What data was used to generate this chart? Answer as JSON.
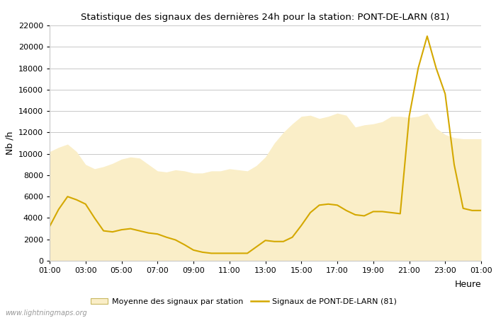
{
  "title": "Statistique des signaux des dernières 24h pour la station: PONT-DE-LARN (81)",
  "ylabel": "Nb /h",
  "watermark": "www.lightningmaps.org",
  "x_ticks": [
    "01:00",
    "03:00",
    "05:00",
    "07:00",
    "09:00",
    "11:00",
    "13:00",
    "15:00",
    "17:00",
    "19:00",
    "21:00",
    "23:00",
    "01:00"
  ],
  "ylim": [
    0,
    22000
  ],
  "yticks": [
    0,
    2000,
    4000,
    6000,
    8000,
    10000,
    12000,
    14000,
    16000,
    18000,
    20000,
    22000
  ],
  "bg_color": "#ffffff",
  "grid_color": "#c8c8c8",
  "fill_color": "#faeec8",
  "line_color": "#d4a800",
  "legend_fill_label": "Moyenne des signaux par station",
  "legend_line_label": "Signaux de PONT-DE-LARN (81)",
  "x_values": [
    0,
    0.5,
    1,
    1.5,
    2,
    2.5,
    3,
    3.5,
    4,
    4.5,
    5,
    5.5,
    6,
    6.5,
    7,
    7.5,
    8,
    8.5,
    9,
    9.5,
    10,
    10.5,
    11,
    11.5,
    12,
    12.5,
    13,
    13.5,
    14,
    14.5,
    15,
    15.5,
    16,
    16.5,
    17,
    17.5,
    18,
    18.5,
    19,
    19.5,
    20,
    20.5,
    21,
    21.5,
    22,
    22.5,
    23,
    23.5,
    24
  ],
  "moyenne_y": [
    10200,
    10600,
    10900,
    10200,
    9000,
    8600,
    8800,
    9100,
    9500,
    9700,
    9600,
    9000,
    8400,
    8300,
    8500,
    8400,
    8200,
    8200,
    8400,
    8400,
    8600,
    8500,
    8400,
    8900,
    9700,
    11000,
    12000,
    12800,
    13500,
    13600,
    13300,
    13500,
    13800,
    13600,
    12500,
    12700,
    12800,
    13000,
    13500,
    13500,
    13400,
    13500,
    13800,
    12400,
    11800,
    11500,
    11400,
    11400,
    11400
  ],
  "station_y": [
    3200,
    4800,
    6000,
    5700,
    5300,
    4000,
    2800,
    2700,
    2900,
    3000,
    2800,
    2600,
    2500,
    2200,
    1950,
    1500,
    1000,
    800,
    700,
    700,
    700,
    700,
    700,
    1300,
    1900,
    1800,
    1800,
    2200,
    3300,
    4500,
    5200,
    5300,
    5200,
    4700,
    4300,
    4200,
    4600,
    4600,
    4500,
    4400,
    13500,
    18000,
    21000,
    18000,
    15600,
    9000,
    4900,
    4700,
    4700
  ]
}
